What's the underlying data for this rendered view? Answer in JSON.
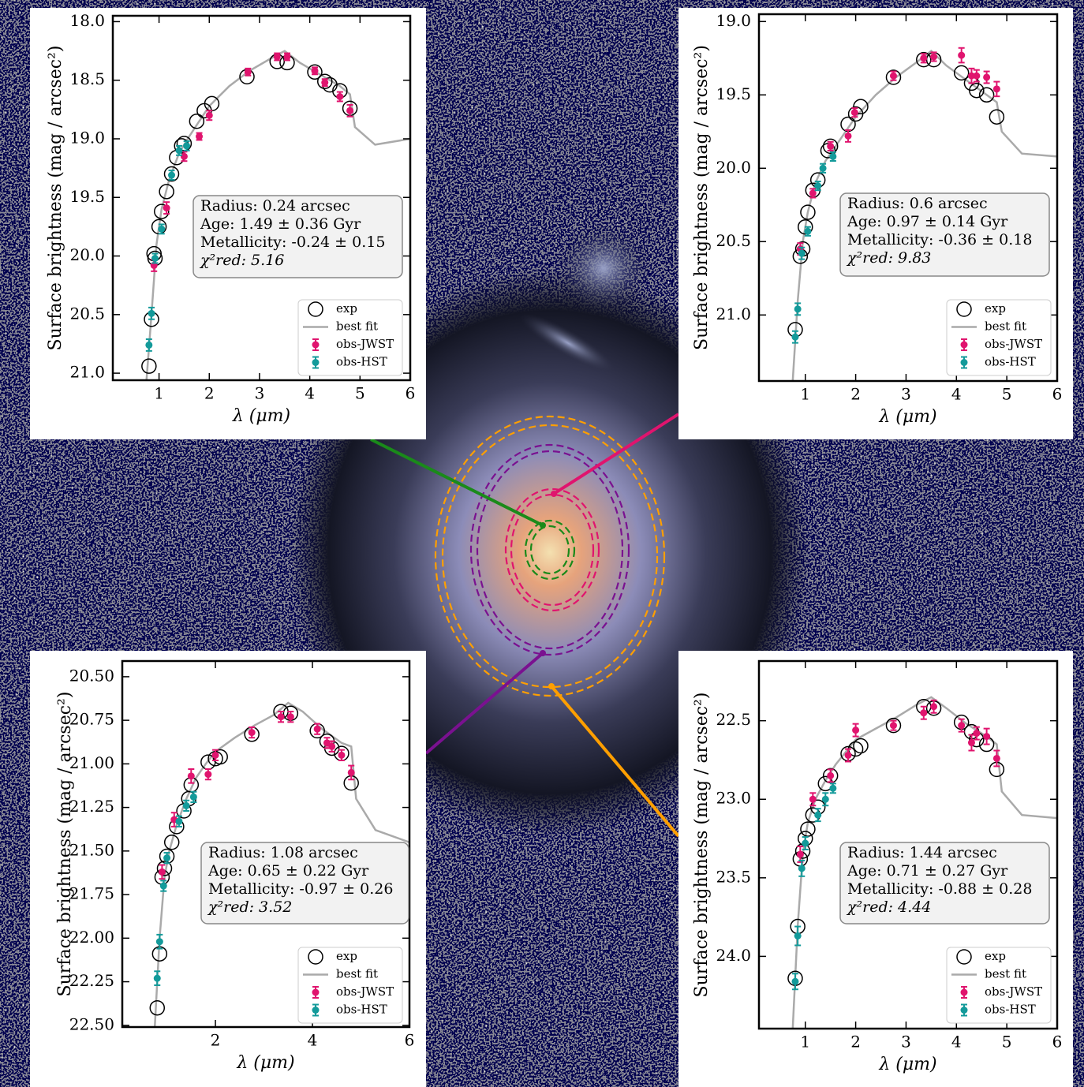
{
  "chart_data": [
    {
      "type": "scatter",
      "x_label": "λ (μm)",
      "y_label": "Surface brightness (mag / arcsec²)",
      "xlim": [
        0.08,
        6.0
      ],
      "xticks": [
        1,
        2,
        3,
        4,
        5,
        6
      ],
      "ylim": [
        17.95,
        21.06
      ],
      "y_inverted": true,
      "yticks": [
        {
          "value": 18,
          "label": "18.0"
        },
        {
          "value": 18.5,
          "label": "18.5"
        },
        {
          "value": 19,
          "label": "19.0"
        },
        {
          "value": 19.5,
          "label": "19.5"
        },
        {
          "value": 20,
          "label": "20.0"
        },
        {
          "value": 20.5,
          "label": "20.5"
        },
        {
          "value": 21,
          "label": "21.0"
        }
      ],
      "annotation": [
        "Radius: 0.24 arcsec",
        "Age: 1.49 ± 0.36 Gyr",
        "Metallicity: -0.24 ± 0.15",
        "χ²red: 5.16"
      ],
      "legend": "lower right",
      "series": [
        {
          "name": "exp",
          "style": "open-circle",
          "color": "#000000",
          "x": [
            0.8,
            0.85,
            0.9,
            0.92,
            1.0,
            1.05,
            1.15,
            1.25,
            1.35,
            1.45,
            1.5,
            1.75,
            1.9,
            2.05,
            2.75,
            3.35,
            3.55,
            4.1,
            4.3,
            4.4,
            4.6,
            4.8
          ],
          "values": [
            20.94,
            20.54,
            19.98,
            20.02,
            19.75,
            19.62,
            19.45,
            19.3,
            19.16,
            19.06,
            19.04,
            18.85,
            18.76,
            18.7,
            18.47,
            18.34,
            18.35,
            18.43,
            18.51,
            18.54,
            18.59,
            18.74
          ]
        },
        {
          "name": "best fit",
          "style": "line",
          "color": "#aaaaaa",
          "x": [
            0.75,
            0.85,
            0.95,
            1.05,
            1.2,
            1.4,
            1.6,
            1.8,
            2.0,
            2.4,
            2.8,
            3.2,
            3.5,
            3.8,
            4.2,
            4.6,
            4.8,
            4.9,
            5.3,
            6.0
          ],
          "values": [
            21.06,
            20.5,
            19.9,
            19.6,
            19.35,
            19.12,
            18.98,
            18.85,
            18.72,
            18.55,
            18.42,
            18.32,
            18.25,
            18.35,
            18.45,
            18.55,
            18.62,
            18.9,
            19.05,
            19.0
          ]
        },
        {
          "name": "obs-JWST",
          "style": "errorbar",
          "color": "#e0146e",
          "x": [
            0.9,
            1.15,
            1.5,
            1.8,
            2.0,
            2.77,
            3.35,
            3.55,
            4.1,
            4.3,
            4.6,
            4.8
          ],
          "values": [
            20.08,
            19.59,
            19.15,
            18.98,
            18.8,
            18.43,
            18.3,
            18.3,
            18.42,
            18.52,
            18.64,
            18.76
          ],
          "errors": [
            0.05,
            0.05,
            0.04,
            0.03,
            0.04,
            0.03,
            0.03,
            0.03,
            0.03,
            0.03,
            0.04,
            0.05
          ]
        },
        {
          "name": "obs-HST",
          "style": "errorbar",
          "color": "#139a9a",
          "x": [
            0.8,
            0.85,
            0.92,
            1.05,
            1.25,
            1.4,
            1.55
          ],
          "values": [
            20.76,
            20.49,
            20.02,
            19.77,
            19.31,
            19.1,
            19.06
          ],
          "errors": [
            0.05,
            0.05,
            0.04,
            0.04,
            0.04,
            0.04,
            0.04
          ]
        }
      ]
    },
    {
      "type": "scatter",
      "x_label": "λ (μm)",
      "y_label": "Surface brightness (mag / arcsec²)",
      "xlim": [
        0.08,
        6.0
      ],
      "xticks": [
        1,
        2,
        3,
        4,
        5,
        6
      ],
      "ylim": [
        18.95,
        21.45
      ],
      "y_inverted": true,
      "yticks": [
        {
          "value": 19,
          "label": "19.0"
        },
        {
          "value": 19.5,
          "label": "19.5"
        },
        {
          "value": 20,
          "label": "20.0"
        },
        {
          "value": 20.5,
          "label": "20.5"
        },
        {
          "value": 21,
          "label": "21.0"
        }
      ],
      "annotation": [
        "Radius: 0.6 arcsec",
        "Age: 0.97 ± 0.14 Gyr",
        "Metallicity: -0.36 ± 0.18",
        "χ²red: 9.83"
      ],
      "legend": "lower right",
      "series": [
        {
          "name": "exp",
          "style": "open-circle",
          "color": "#000000",
          "x": [
            0.8,
            0.9,
            0.95,
            1.0,
            1.05,
            1.15,
            1.25,
            1.45,
            1.5,
            1.85,
            2.0,
            2.1,
            2.75,
            3.35,
            3.55,
            4.1,
            4.3,
            4.4,
            4.6,
            4.8
          ],
          "values": [
            21.1,
            20.6,
            20.55,
            20.4,
            20.3,
            20.15,
            20.08,
            19.88,
            19.85,
            19.7,
            19.63,
            19.58,
            19.38,
            19.26,
            19.26,
            19.35,
            19.42,
            19.47,
            19.5,
            19.65
          ]
        },
        {
          "name": "best fit",
          "style": "line",
          "color": "#aaaaaa",
          "x": [
            0.75,
            0.85,
            0.95,
            1.05,
            1.2,
            1.4,
            1.6,
            1.8,
            2.0,
            2.4,
            2.8,
            3.2,
            3.5,
            3.8,
            4.2,
            4.6,
            4.8,
            4.9,
            5.3,
            6.0
          ],
          "values": [
            21.45,
            20.9,
            20.5,
            20.3,
            20.1,
            19.95,
            19.85,
            19.75,
            19.65,
            19.5,
            19.38,
            19.28,
            19.2,
            19.3,
            19.4,
            19.5,
            19.55,
            19.75,
            19.9,
            19.92
          ]
        },
        {
          "name": "obs-JWST",
          "style": "errorbar",
          "color": "#e0146e",
          "x": [
            0.9,
            1.15,
            1.5,
            1.85,
            1.98,
            2.75,
            3.35,
            3.55,
            4.1,
            4.3,
            4.4,
            4.6,
            4.8
          ],
          "values": [
            20.55,
            20.17,
            19.85,
            19.78,
            19.62,
            19.37,
            19.25,
            19.24,
            19.23,
            19.37,
            19.37,
            19.38,
            19.46
          ],
          "errors": [
            0.04,
            0.03,
            0.03,
            0.04,
            0.03,
            0.03,
            0.03,
            0.03,
            0.05,
            0.05,
            0.04,
            0.04,
            0.05
          ]
        },
        {
          "name": "obs-HST",
          "style": "errorbar",
          "color": "#139a9a",
          "x": [
            0.8,
            0.85,
            0.93,
            1.05,
            1.25,
            1.35,
            1.55
          ],
          "values": [
            21.15,
            20.96,
            20.58,
            20.43,
            20.12,
            20.0,
            19.92
          ],
          "errors": [
            0.04,
            0.04,
            0.04,
            0.03,
            0.03,
            0.03,
            0.03
          ]
        }
      ]
    },
    {
      "type": "scatter",
      "x_label": "λ (μm)",
      "y_label": "Surface brightness (mag / arcsec²)",
      "xlim": [
        0.08,
        6.0
      ],
      "xticks": [
        2,
        4,
        6
      ],
      "ylim": [
        20.41,
        22.51
      ],
      "y_inverted": true,
      "yticks": [
        {
          "value": 20.5,
          "label": "20.50"
        },
        {
          "value": 20.75,
          "label": "20.75"
        },
        {
          "value": 21,
          "label": "21.00"
        },
        {
          "value": 21.25,
          "label": "21.25"
        },
        {
          "value": 21.5,
          "label": "21.50"
        },
        {
          "value": 21.75,
          "label": "21.75"
        },
        {
          "value": 22,
          "label": "22.00"
        },
        {
          "value": 22.25,
          "label": "22.25"
        },
        {
          "value": 22.5,
          "label": "22.50"
        }
      ],
      "annotation": [
        "Radius: 1.08 arcsec",
        "Age: 0.65 ± 0.22 Gyr",
        "Metallicity: -0.97 ± 0.26",
        "χ²red: 3.52"
      ],
      "legend": "lower right",
      "series": [
        {
          "name": "exp",
          "style": "open-circle",
          "color": "#000000",
          "x": [
            0.8,
            0.85,
            0.9,
            0.95,
            1.0,
            1.1,
            1.2,
            1.35,
            1.45,
            1.5,
            1.85,
            2.0,
            2.1,
            2.75,
            3.35,
            3.55,
            4.1,
            4.3,
            4.4,
            4.6,
            4.8
          ],
          "values": [
            22.4,
            22.09,
            21.65,
            21.6,
            21.53,
            21.45,
            21.36,
            21.27,
            21.2,
            21.12,
            20.99,
            20.97,
            20.96,
            20.83,
            20.7,
            20.71,
            20.81,
            20.87,
            20.91,
            20.94,
            21.11
          ]
        },
        {
          "name": "best fit",
          "style": "line",
          "color": "#aaaaaa",
          "x": [
            0.75,
            0.85,
            0.95,
            1.05,
            1.2,
            1.4,
            1.6,
            1.8,
            2.0,
            2.4,
            2.8,
            3.2,
            3.5,
            3.8,
            4.2,
            4.6,
            4.8,
            4.9,
            5.3,
            6.0
          ],
          "values": [
            22.51,
            22.0,
            21.65,
            21.5,
            21.35,
            21.2,
            21.08,
            21.0,
            20.93,
            20.85,
            20.78,
            20.72,
            20.65,
            20.7,
            20.8,
            20.88,
            20.9,
            21.2,
            21.38,
            21.45
          ]
        },
        {
          "name": "obs-JWST",
          "style": "errorbar",
          "color": "#e0146e",
          "x": [
            0.9,
            1.15,
            1.5,
            1.85,
            2.0,
            2.75,
            3.35,
            3.55,
            4.1,
            4.3,
            4.4,
            4.6,
            4.8
          ],
          "values": [
            21.62,
            21.32,
            21.07,
            21.06,
            20.95,
            20.82,
            20.73,
            20.73,
            20.8,
            20.88,
            20.9,
            20.95,
            21.05
          ],
          "errors": [
            0.04,
            0.04,
            0.04,
            0.03,
            0.03,
            0.03,
            0.03,
            0.03,
            0.03,
            0.03,
            0.03,
            0.03,
            0.04
          ]
        },
        {
          "name": "obs-HST",
          "style": "errorbar",
          "color": "#139a9a",
          "x": [
            0.8,
            0.85,
            0.93,
            1.0,
            1.25,
            1.4,
            1.55
          ],
          "values": [
            22.23,
            22.02,
            21.7,
            21.54,
            21.33,
            21.24,
            21.19
          ],
          "errors": [
            0.04,
            0.04,
            0.03,
            0.03,
            0.03,
            0.03,
            0.03
          ]
        }
      ]
    },
    {
      "type": "scatter",
      "x_label": "λ (μm)",
      "y_label": "Surface brightness (mag / arcsec²)",
      "xlim": [
        0.08,
        6.0
      ],
      "xticks": [
        1,
        2,
        3,
        4,
        5,
        6
      ],
      "ylim": [
        22.12,
        24.46
      ],
      "y_inverted": true,
      "yticks": [
        {
          "value": 22.5,
          "label": "22.5"
        },
        {
          "value": 23,
          "label": "23.0"
        },
        {
          "value": 23.5,
          "label": "23.5"
        },
        {
          "value": 24,
          "label": "24.0"
        }
      ],
      "annotation": [
        "Radius: 1.44 arcsec",
        "Age: 0.71 ± 0.27 Gyr",
        "Metallicity: -0.88 ± 0.28",
        "χ²red: 4.44"
      ],
      "legend": "lower right",
      "series": [
        {
          "name": "exp",
          "style": "open-circle",
          "color": "#000000",
          "x": [
            0.8,
            0.85,
            0.9,
            0.95,
            1.0,
            1.05,
            1.15,
            1.25,
            1.4,
            1.5,
            1.85,
            2.0,
            2.1,
            2.75,
            3.35,
            3.55,
            4.1,
            4.3,
            4.4,
            4.6,
            4.8
          ],
          "values": [
            24.14,
            23.81,
            23.38,
            23.33,
            23.25,
            23.19,
            23.1,
            23.05,
            22.9,
            22.85,
            22.71,
            22.68,
            22.66,
            22.53,
            22.41,
            22.42,
            22.51,
            22.57,
            22.62,
            22.65,
            22.81
          ]
        },
        {
          "name": "best fit",
          "style": "line",
          "color": "#aaaaaa",
          "x": [
            0.75,
            0.85,
            0.95,
            1.05,
            1.2,
            1.4,
            1.6,
            1.8,
            2.0,
            2.4,
            2.8,
            3.2,
            3.5,
            3.8,
            4.2,
            4.6,
            4.8,
            4.9,
            5.3,
            6.0
          ],
          "values": [
            24.46,
            23.8,
            23.35,
            23.15,
            23.0,
            22.88,
            22.78,
            22.7,
            22.62,
            22.55,
            22.48,
            22.4,
            22.35,
            22.42,
            22.52,
            22.6,
            22.65,
            22.95,
            23.1,
            23.12
          ]
        },
        {
          "name": "obs-JWST",
          "style": "errorbar",
          "color": "#e0146e",
          "x": [
            0.9,
            1.15,
            1.5,
            1.85,
            2.0,
            2.75,
            3.35,
            3.55,
            4.1,
            4.3,
            4.4,
            4.6,
            4.8
          ],
          "values": [
            23.35,
            23.0,
            22.85,
            22.72,
            22.56,
            22.53,
            22.45,
            22.41,
            22.53,
            22.64,
            22.58,
            22.6,
            22.74
          ],
          "errors": [
            0.05,
            0.04,
            0.04,
            0.04,
            0.04,
            0.03,
            0.04,
            0.04,
            0.04,
            0.05,
            0.04,
            0.05,
            0.05
          ]
        },
        {
          "name": "obs-HST",
          "style": "errorbar",
          "color": "#139a9a",
          "x": [
            0.8,
            0.85,
            0.93,
            1.0,
            1.25,
            1.4,
            1.55
          ],
          "values": [
            24.16,
            23.87,
            23.44,
            23.28,
            23.1,
            23.0,
            22.93
          ],
          "errors": [
            0.05,
            0.06,
            0.05,
            0.04,
            0.04,
            0.04,
            0.03
          ]
        }
      ]
    }
  ]
}
